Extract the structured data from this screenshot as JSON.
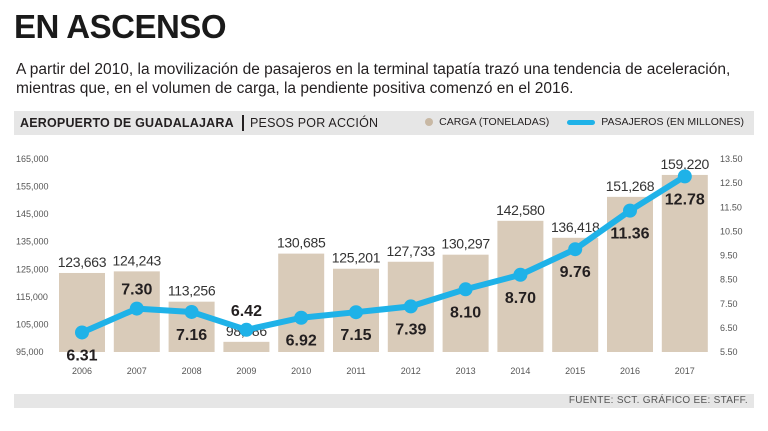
{
  "header": {
    "title": "EN ASCENSO",
    "subtitle": "A partir del 2010, la movilización de pasajeros en la terminal tapatía trazó una tendencia de aceleración, mientras que, en el volumen de carga, la pendiente positiva comenzó en el 2016."
  },
  "chart_header": {
    "title": "AEROPUERTO DE GUADALAJARA",
    "subtitle": "PESOS POR ACCIÓN",
    "legend_bars": "CARGA (TONELADAS)",
    "legend_line": "PASAJEROS (EN MILLONES)"
  },
  "chart_data": {
    "type": "bar",
    "categories": [
      "2006",
      "2007",
      "2008",
      "2009",
      "2010",
      "2011",
      "2012",
      "2013",
      "2014",
      "2015",
      "2016",
      "2017"
    ],
    "series": [
      {
        "name": "CARGA (TONELADAS)",
        "type": "bar",
        "axis": "left",
        "values": [
          123663,
          124243,
          113256,
          98686,
          130685,
          125201,
          127733,
          130297,
          142580,
          136418,
          151268,
          159220
        ],
        "labels": [
          "123,663",
          "124,243",
          "113,256",
          "98,686",
          "130,685",
          "125,201",
          "127,733",
          "130,297",
          "142,580",
          "136,418",
          "151,268",
          "159,220"
        ],
        "color": "#d9cbb9"
      },
      {
        "name": "PASAJEROS (EN MILLONES)",
        "type": "line",
        "axis": "right",
        "values": [
          6.31,
          7.3,
          7.16,
          6.42,
          6.92,
          7.15,
          7.39,
          8.1,
          8.7,
          9.76,
          11.36,
          12.78
        ],
        "labels": [
          "6.31",
          "7.30",
          "7.16",
          "6.42",
          "6.92",
          "7.15",
          "7.39",
          "8.10",
          "8.70",
          "9.76",
          "11.36",
          "12.78"
        ],
        "color": "#1fb2e8"
      }
    ],
    "left_axis": {
      "min": 95000,
      "max": 165000,
      "ticks": [
        "95,000",
        "105,000",
        "115,000",
        "125,000",
        "135,000",
        "145,000",
        "155,000",
        "165,000"
      ]
    },
    "right_axis": {
      "min": 5.5,
      "max": 13.5,
      "ticks": [
        "5.50",
        "6.50",
        "7.50",
        "8.50",
        "9.50",
        "10.50",
        "11.50",
        "12.50",
        "13.50"
      ]
    },
    "grid": false
  },
  "footer": {
    "source": "FUENTE: SCT. GRÁFICO EE: STAFF."
  }
}
